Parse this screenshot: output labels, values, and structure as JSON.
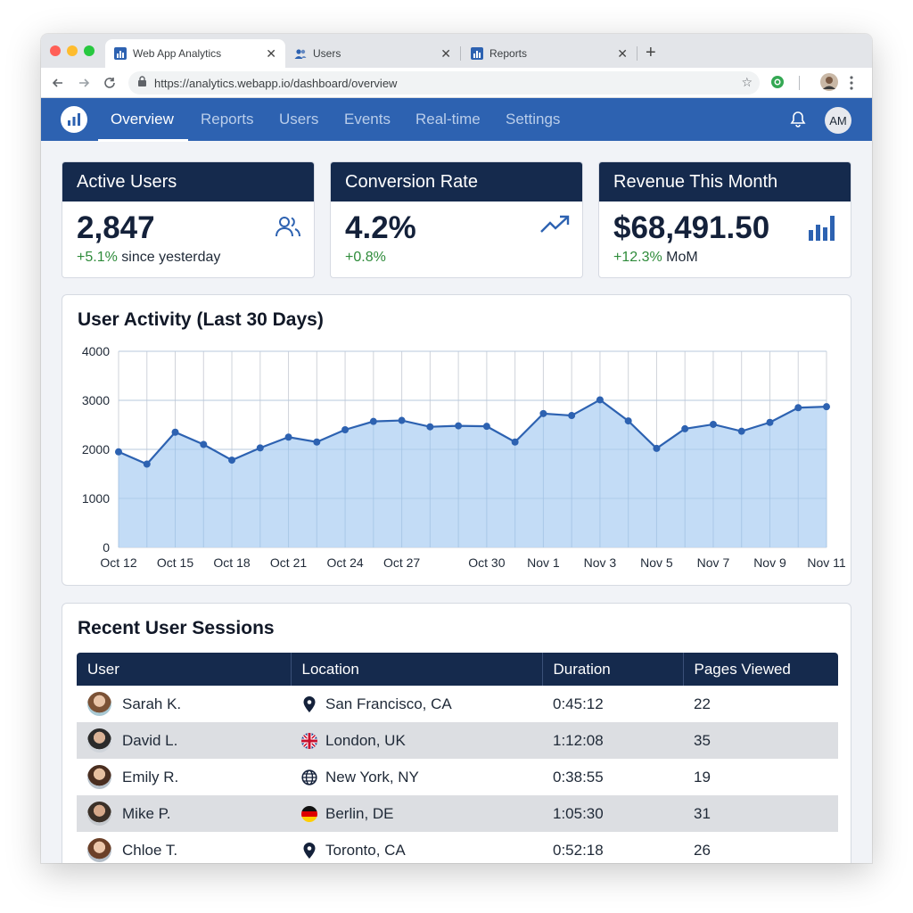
{
  "browser": {
    "tabs": [
      {
        "title": "Web App Analytics",
        "active": true,
        "icon": "bar-chart-icon"
      },
      {
        "title": "Users",
        "active": false,
        "icon": "users-icon"
      },
      {
        "title": "Reports",
        "active": false,
        "icon": "bar-chart-icon"
      }
    ],
    "url": "https://analytics.webapp.io/dashboard/overview"
  },
  "nav": {
    "items": [
      "Overview",
      "Reports",
      "Users",
      "Events",
      "Real-time",
      "Settings"
    ],
    "active": "Overview",
    "user_initials": "AM"
  },
  "kpis": [
    {
      "title": "Active Users",
      "value": "2,847",
      "delta": "+5.1%",
      "delta_suffix": "since yesterday",
      "icon": "users-icon"
    },
    {
      "title": "Conversion Rate",
      "value": "4.2%",
      "delta": "+0.8%",
      "delta_suffix": "",
      "icon": "trending-up-icon"
    },
    {
      "title": "Revenue This Month",
      "value": "$68,491.50",
      "delta": "+12.3%",
      "delta_suffix": "MoM",
      "icon": "bar-chart-icon"
    }
  ],
  "chart": {
    "title": "User Activity (Last 30 Days)"
  },
  "chart_data": {
    "type": "area",
    "title": "User Activity (Last 30 Days)",
    "xlabel": "",
    "ylabel": "",
    "ylim": [
      0,
      4000
    ],
    "yticks": [
      0,
      1000,
      2000,
      3000,
      4000
    ],
    "x_tick_labels": [
      "Oct 12",
      "Oct 15",
      "Oct 18",
      "Oct 21",
      "Oct 24",
      "Oct 27",
      "Oct 30",
      "Nov 1",
      "Nov 3",
      "Nov 5",
      "Nov 7",
      "Nov 9",
      "Nov 11"
    ],
    "x_tick_index": [
      0,
      2,
      4,
      6,
      8,
      10,
      13,
      15,
      17,
      19,
      21,
      23,
      25
    ],
    "values": [
      1950,
      1700,
      2350,
      2100,
      1780,
      2030,
      2250,
      2150,
      2400,
      2570,
      2590,
      2460,
      2480,
      2470,
      2150,
      2730,
      2690,
      3010,
      2580,
      2020,
      2420,
      2510,
      2370,
      2550,
      2850,
      2870
    ],
    "grid": true,
    "color": "#2d62b1",
    "fill": "#b8d6f4"
  },
  "sessions": {
    "title": "Recent User Sessions",
    "columns": [
      "User",
      "Location",
      "Duration",
      "Pages Viewed"
    ],
    "rows": [
      {
        "user": "Sarah K.",
        "location": "San Francisco, CA",
        "location_icon": "map-pin-icon",
        "duration": "0:45:12",
        "pages": "22"
      },
      {
        "user": "David L.",
        "location": "London, UK",
        "location_icon": "uk-flag-icon",
        "duration": "1:12:08",
        "pages": "35"
      },
      {
        "user": "Emily R.",
        "location": "New York, NY",
        "location_icon": "globe-icon",
        "duration": "0:38:55",
        "pages": "19"
      },
      {
        "user": "Mike P.",
        "location": "Berlin, DE",
        "location_icon": "germany-flag-icon",
        "duration": "1:05:30",
        "pages": "31"
      },
      {
        "user": "Chloe T.",
        "location": "Toronto, CA",
        "location_icon": "map-pin-icon",
        "duration": "0:52:18",
        "pages": "26"
      }
    ]
  }
}
